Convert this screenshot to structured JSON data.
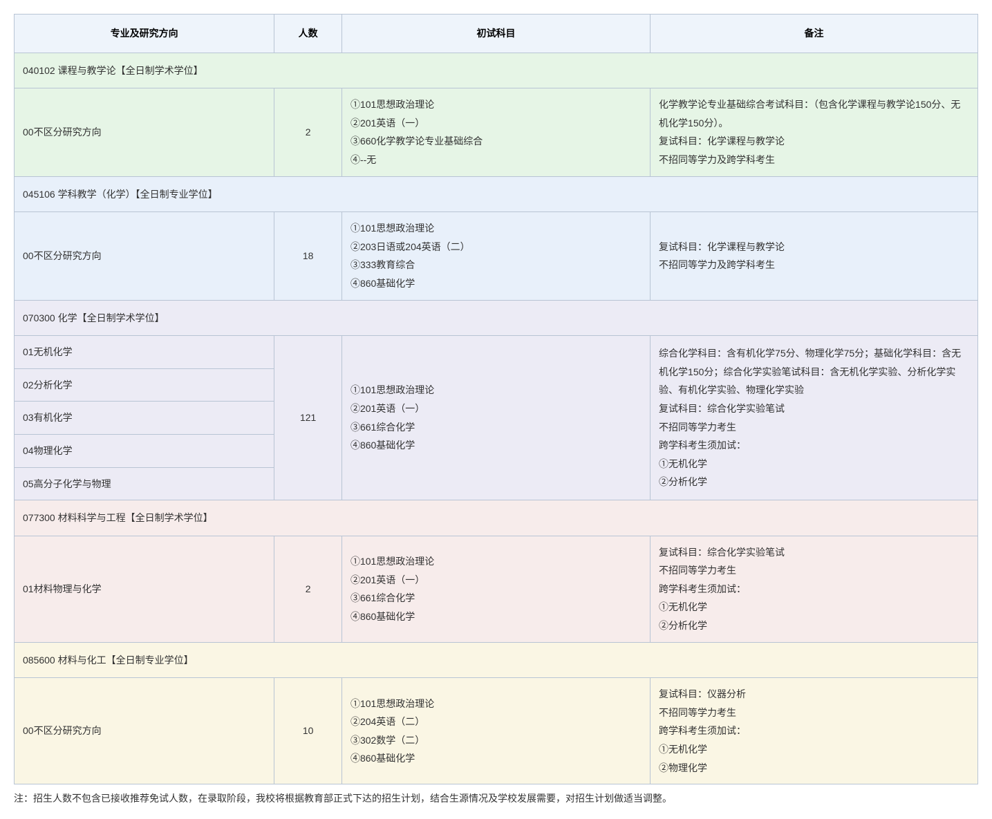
{
  "headers": {
    "major": "专业及研究方向",
    "count": "人数",
    "exam": "初试科目",
    "note": "备注"
  },
  "sections": [
    {
      "title": "040102 课程与教学论【全日制学术学位】",
      "bg": "bg-green",
      "rows": [
        {
          "major": "00不区分研究方向",
          "count": "2",
          "exam": "①101思想政治理论\n②201英语（一）\n③660化学教学论专业基础综合\n④--无",
          "note": "化学教学论专业基础综合考试科目：（包含化学课程与教学论150分、无机化学150分）。\n复试科目：化学课程与教学论\n不招同等学力及跨学科考生"
        }
      ]
    },
    {
      "title": "045106 学科教学（化学）【全日制专业学位】",
      "bg": "bg-blue",
      "rows": [
        {
          "major": "00不区分研究方向",
          "count": "18",
          "exam": "①101思想政治理论\n②203日语或204英语（二）\n③333教育综合\n④860基础化学",
          "note": "复试科目：化学课程与教学论\n不招同等学力及跨学科考生"
        }
      ]
    },
    {
      "title": "070300 化学【全日制学术学位】",
      "bg": "bg-purple",
      "merged": {
        "majors": [
          "01无机化学",
          "02分析化学",
          "03有机化学",
          "04物理化学",
          "05高分子化学与物理"
        ],
        "count": "121",
        "exam": "①101思想政治理论\n②201英语（一）\n③661综合化学\n④860基础化学",
        "note": "综合化学科目：含有机化学75分、物理化学75分；基础化学科目：含无机化学150分；综合化学实验笔试科目：含无机化学实验、分析化学实验、有机化学实验、物理化学实验\n复试科目：综合化学实验笔试\n不招同等学力考生\n跨学科考生须加试：\n①无机化学\n②分析化学"
      }
    },
    {
      "title": "077300 材料科学与工程【全日制学术学位】",
      "bg": "bg-pink",
      "rows": [
        {
          "major": "01材料物理与化学",
          "count": "2",
          "exam": "①101思想政治理论\n②201英语（一）\n③661综合化学\n④860基础化学",
          "note": "复试科目：综合化学实验笔试\n不招同等学力考生\n跨学科考生须加试：\n①无机化学\n②分析化学"
        }
      ]
    },
    {
      "title": "085600 材料与化工【全日制专业学位】",
      "bg": "bg-yellow",
      "rows": [
        {
          "major": "00不区分研究方向",
          "count": "10",
          "exam": "①101思想政治理论\n②204英语（二）\n③302数学（二）\n④860基础化学",
          "note": "复试科目：仪器分析\n不招同等学力考生\n跨学科考生须加试：\n①无机化学\n②物理化学"
        }
      ]
    }
  ],
  "footnote": "注：招生人数不包含已接收推荐免试人数，在录取阶段，我校将根据教育部正式下达的招生计划，结合生源情况及学校发展需要，对招生计划做适当调整。"
}
